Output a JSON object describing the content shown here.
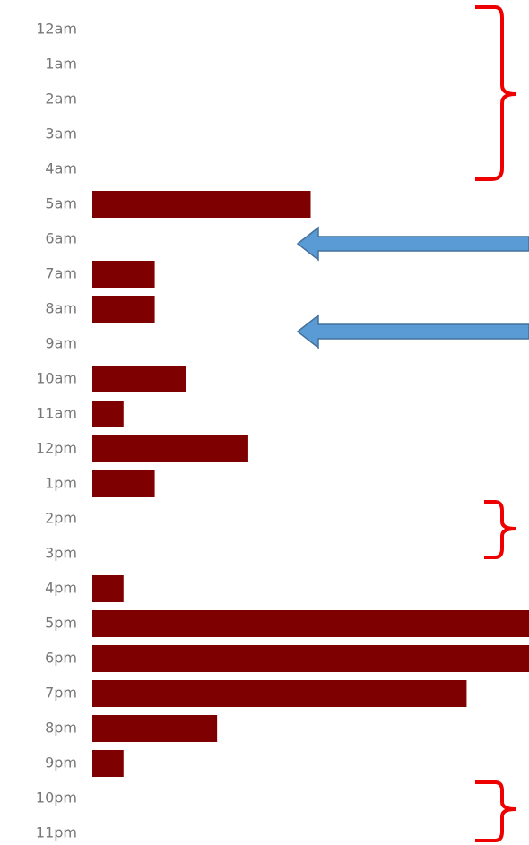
{
  "chart_data": {
    "type": "bar",
    "orientation": "horizontal",
    "categories": [
      "12am",
      "1am",
      "2am",
      "3am",
      "4am",
      "5am",
      "6am",
      "7am",
      "8am",
      "9am",
      "10am",
      "11am",
      "12pm",
      "1pm",
      "2pm",
      "3pm",
      "4pm",
      "5pm",
      "6pm",
      "7pm",
      "8pm",
      "9pm",
      "10pm",
      "11pm"
    ],
    "values": [
      0,
      0,
      0,
      0,
      0,
      7,
      0,
      2,
      2,
      0,
      3,
      1,
      5,
      2,
      0,
      0,
      1,
      14,
      14,
      12,
      4,
      1,
      0,
      0
    ],
    "color": "#7f0000"
  }
}
